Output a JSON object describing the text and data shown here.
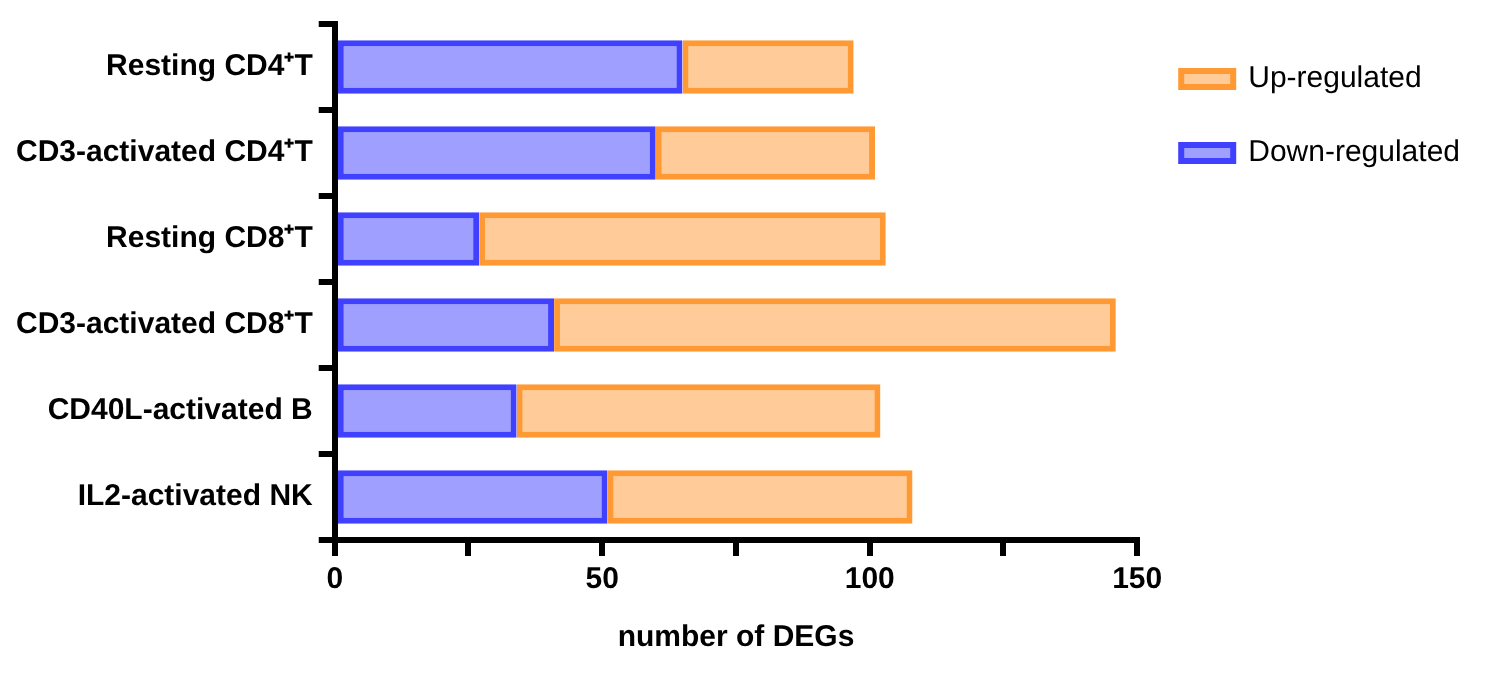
{
  "chart_data": {
    "type": "bar",
    "orientation": "horizontal",
    "stacked": true,
    "categories": [
      "Resting CD4⁺T",
      "CD3-activated CD4⁺T",
      "Resting CD8⁺T",
      "CD3-activated CD8⁺T",
      "CD40L-activated B",
      "IL2-activated NK"
    ],
    "series": [
      {
        "name": "Down-regulated",
        "color": "#4040ff",
        "values": [
          65,
          60,
          27,
          41,
          34,
          51
        ]
      },
      {
        "name": "Up-regulated",
        "color": "#ff9933",
        "values": [
          32,
          41,
          76,
          105,
          68,
          57
        ]
      }
    ],
    "xlabel": "number of DEGs",
    "xlim": [
      0,
      150
    ],
    "xticks": [
      0,
      {
        "value": 25,
        "label": null
      },
      50,
      {
        "value": 75,
        "label": null
      },
      100,
      {
        "value": 125,
        "label": null
      },
      150
    ],
    "grid": false,
    "legend": "top right"
  }
}
